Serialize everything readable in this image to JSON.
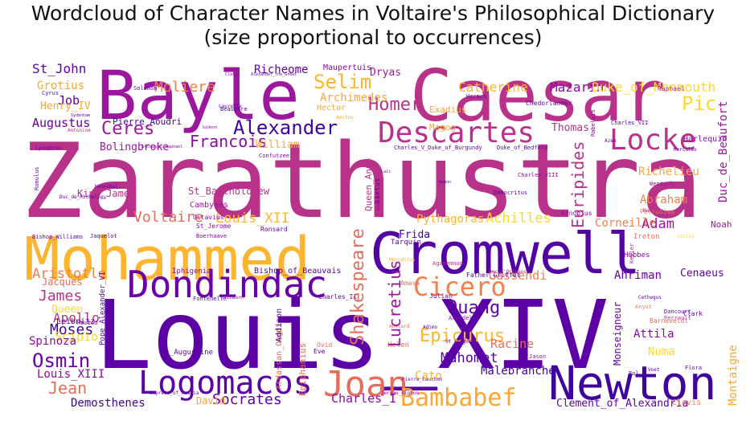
{
  "chart_data": {
    "type": "wordcloud",
    "title": "Wordcloud of Character Names in Voltaire's Philosophical Dictionary",
    "subtitle": "(size proportional to occurrences)",
    "colormap": "plasma",
    "words": [
      {
        "text": "Zarathustra",
        "weight": 100,
        "color": "#b83289"
      },
      {
        "text": "Louis_XIV",
        "weight": 98,
        "color": "#5c01a6"
      },
      {
        "text": "Caesar",
        "weight": 66,
        "color": "#b83289"
      },
      {
        "text": "Bayle",
        "weight": 62,
        "color": "#9c179e"
      },
      {
        "text": "Mohammed",
        "weight": 60,
        "color": "#fdb42f"
      },
      {
        "text": "Cromwell",
        "weight": 56,
        "color": "#5302a3"
      },
      {
        "text": "Newton",
        "weight": 44,
        "color": "#3e049c"
      },
      {
        "text": "Dondindac",
        "weight": 42,
        "color": "#6a00a8"
      },
      {
        "text": "Logomacos",
        "weight": 34,
        "color": "#5c01a6"
      },
      {
        "text": "Descartes",
        "weight": 30,
        "color": "#b83289"
      },
      {
        "text": "Joan",
        "weight": 30,
        "color": "#e66c5c"
      },
      {
        "text": "Cicero",
        "weight": 28,
        "color": "#f0804e"
      },
      {
        "text": "Locke",
        "weight": 28,
        "color": "#b83289"
      },
      {
        "text": "Bambabef",
        "weight": 24,
        "color": "#fca636"
      },
      {
        "text": "Alexander",
        "weight": 22,
        "color": "#3e049c"
      },
      {
        "text": "Shakespeare",
        "weight": 20,
        "color": "#e66c5c"
      },
      {
        "text": "Homer",
        "weight": 20,
        "color": "#b83289"
      },
      {
        "text": "Selim",
        "weight": 20,
        "color": "#fdb42f"
      },
      {
        "text": "Pic",
        "weight": 20,
        "color": "#fdd82f"
      },
      {
        "text": "Osmin",
        "weight": 20,
        "color": "#6a00a8"
      },
      {
        "text": "Ouang",
        "weight": 20,
        "color": "#5c01a6"
      },
      {
        "text": "Epicurus",
        "weight": 19,
        "color": "#fdb42f"
      },
      {
        "text": "Ceres",
        "weight": 18,
        "color": "#9c179e"
      },
      {
        "text": "Francois",
        "weight": 18,
        "color": "#8b0aa5"
      },
      {
        "text": "Voltaire",
        "weight": 17,
        "color": "#e66c5c"
      },
      {
        "text": "Lucretius",
        "weight": 16,
        "color": "#9c179e"
      },
      {
        "text": "Jean",
        "weight": 16,
        "color": "#e66c5c"
      },
      {
        "text": "Moliere",
        "weight": 16,
        "color": "#f0804e"
      },
      {
        "text": "Socrates",
        "weight": 16,
        "color": "#5c01a6"
      },
      {
        "text": "Mahomet",
        "weight": 16,
        "color": "#5302a3"
      },
      {
        "text": "Euripides",
        "weight": 15,
        "color": "#b83289"
      },
      {
        "text": "Adam",
        "weight": 15,
        "color": "#9c179e"
      },
      {
        "text": "Moses",
        "weight": 15,
        "color": "#3e049c"
      },
      {
        "text": "James",
        "weight": 15,
        "color": "#b83289"
      },
      {
        "text": "Louis_XII",
        "weight": 15,
        "color": "#fdb42f"
      },
      {
        "text": "Aristotle",
        "weight": 14,
        "color": "#f0804e"
      },
      {
        "text": "Achilles",
        "weight": 14,
        "color": "#fdd82f"
      },
      {
        "text": "Mazarin",
        "weight": 14,
        "color": "#8b0aa5"
      },
      {
        "text": "Catherine",
        "weight": 14,
        "color": "#fdb42f"
      },
      {
        "text": "Duke_of_Monmouth",
        "weight": 14,
        "color": "#fdd82f"
      },
      {
        "text": "Apollo",
        "weight": 13,
        "color": "#b83289"
      },
      {
        "text": "St_John",
        "weight": 13,
        "color": "#6a00a8"
      },
      {
        "text": "Richeome",
        "weight": 13,
        "color": "#6a00a8"
      },
      {
        "text": "Pythagoras",
        "weight": 13,
        "color": "#fdb42f"
      },
      {
        "text": "Racine",
        "weight": 13,
        "color": "#e66c5c"
      },
      {
        "text": "Ahriman",
        "weight": 13,
        "color": "#6a00a8"
      },
      {
        "text": "Gassendi",
        "weight": 13,
        "color": "#f0804e"
      },
      {
        "text": "Scipio",
        "weight": 13,
        "color": "#fdd82f"
      },
      {
        "text": "Charles_I",
        "weight": 12,
        "color": "#8b0aa5"
      },
      {
        "text": "Cato",
        "weight": 12,
        "color": "#fdb42f"
      },
      {
        "text": "Augustus",
        "weight": 12,
        "color": "#6a00a8"
      },
      {
        "text": "Demosthenes",
        "weight": 12,
        "color": "#3e049c"
      },
      {
        "text": "Louis_XIII",
        "weight": 12,
        "color": "#8b0aa5"
      },
      {
        "text": "Spinoza",
        "weight": 12,
        "color": "#8b0aa5"
      },
      {
        "text": "Archimedes",
        "weight": 12,
        "color": "#fca636"
      },
      {
        "text": "Job",
        "weight": 12,
        "color": "#5c01a6"
      },
      {
        "text": "Grotius",
        "weight": 11,
        "color": "#fca636"
      },
      {
        "text": "Malebranche",
        "weight": 11,
        "color": "#3e049c"
      },
      {
        "text": "Clement_of_Alexandria",
        "weight": 10,
        "color": "#5c01a6"
      },
      {
        "text": "Corneille",
        "weight": 11,
        "color": "#f0804e"
      },
      {
        "text": "Richelieu",
        "weight": 11,
        "color": "#fca636"
      },
      {
        "text": "Abraham",
        "weight": 11,
        "color": "#f0804e"
      },
      {
        "text": "Attila",
        "weight": 11,
        "color": "#8b0aa5"
      },
      {
        "text": "Numa",
        "weight": 11,
        "color": "#fdd82f"
      },
      {
        "text": "Cenaeus",
        "weight": 10,
        "color": "#5c01a6"
      },
      {
        "text": "Henry_IV",
        "weight": 11,
        "color": "#fca636"
      },
      {
        "text": "Bolingbroke",
        "weight": 10,
        "color": "#9c179e"
      },
      {
        "text": "Queen",
        "weight": 11,
        "color": "#fdd82f"
      },
      {
        "text": "William",
        "weight": 10,
        "color": "#fca636"
      },
      {
        "text": "Dryas",
        "weight": 10,
        "color": "#9c179e"
      },
      {
        "text": "Frida",
        "weight": 10,
        "color": "#3e049c"
      },
      {
        "text": "Montaigne",
        "weight": 10,
        "color": "#fca636"
      },
      {
        "text": "Thomas",
        "weight": 10,
        "color": "#b83289"
      },
      {
        "text": "Duc_de_Beaufort",
        "weight": 10,
        "color": "#9c179e"
      },
      {
        "text": "Monseigneur",
        "weight": 9,
        "color": "#6a00a8"
      },
      {
        "text": "Harlequin",
        "weight": 8,
        "color": "#8b0aa5"
      },
      {
        "text": "King_James",
        "weight": 9,
        "color": "#b83289"
      },
      {
        "text": "St_Bartholomew",
        "weight": 9,
        "color": "#b83289"
      },
      {
        "text": "Pierre_Aoudri",
        "weight": 9,
        "color": "#3e049c"
      },
      {
        "text": "Jacques",
        "weight": 9,
        "color": "#e66c5c"
      },
      {
        "text": "Hector",
        "weight": 8,
        "color": "#fca636"
      },
      {
        "text": "Exadius",
        "weight": 8,
        "color": "#fca636"
      },
      {
        "text": "Magog",
        "weight": 8,
        "color": "#fca636"
      },
      {
        "text": "Maupertuis",
        "weight": 8,
        "color": "#8b0aa5"
      },
      {
        "text": "Cambyses",
        "weight": 8,
        "color": "#9c179e"
      },
      {
        "text": "Leibnitz",
        "weight": 8,
        "color": "#5c01a6"
      },
      {
        "text": "Noah",
        "weight": 8,
        "color": "#9c179e"
      },
      {
        "text": "Bishop_of_Beauvais",
        "weight": 7,
        "color": "#5c01a6"
      },
      {
        "text": "Iphigenia",
        "weight": 7,
        "color": "#8b0aa5"
      },
      {
        "text": "Hobbes",
        "weight": 7,
        "color": "#8b0aa5"
      },
      {
        "text": "Ireton",
        "weight": 7,
        "color": "#e66c5c"
      },
      {
        "text": "Tarquin",
        "weight": 7,
        "color": "#5c01a6"
      },
      {
        "text": "Arnobius",
        "weight": 7,
        "color": "#8b0aa5"
      },
      {
        "text": "Raphael",
        "weight": 7,
        "color": "#b83289"
      },
      {
        "text": "Addison",
        "weight": 7,
        "color": "#5c01a6"
      },
      {
        "text": "Epiphanius",
        "weight": 7,
        "color": "#e66c5c"
      },
      {
        "text": "Ardassan_Ougli",
        "weight": 7,
        "color": "#e66c5c"
      },
      {
        "text": "Pope_Alexander_VI",
        "weight": 7,
        "color": "#5c01a6"
      },
      {
        "text": "Queen_Anne",
        "weight": 7,
        "color": "#b83289"
      },
      {
        "text": "Sixtus",
        "weight": 7,
        "color": "#5c01a6"
      },
      {
        "text": "Octavius",
        "weight": 6,
        "color": "#8b0aa5"
      },
      {
        "text": "St_Jerome",
        "weight": 6,
        "color": "#8b0aa5"
      },
      {
        "text": "Ronsard",
        "weight": 6,
        "color": "#5c01a6"
      },
      {
        "text": "Boerhaave",
        "weight": 6,
        "color": "#8b0aa5"
      },
      {
        "text": "St_Augustine",
        "weight": 6,
        "color": "#5c01a6"
      },
      {
        "text": "Solomon",
        "weight": 6,
        "color": "#5c01a6"
      },
      {
        "text": "Confutzee",
        "weight": 6,
        "color": "#8b0aa5"
      },
      {
        "text": "Father_Griffet",
        "weight": 6,
        "color": "#5c01a6"
      },
      {
        "text": "Charles_VII",
        "weight": 6,
        "color": "#5c01a6"
      },
      {
        "text": "Rabelais",
        "weight": 6,
        "color": "#8b0aa5"
      },
      {
        "text": "Petronius",
        "weight": 6,
        "color": "#f0804e"
      },
      {
        "text": "Wentzel",
        "weight": 6,
        "color": "#9c179e"
      },
      {
        "text": "Maximus",
        "weight": 6,
        "color": "#b83289"
      },
      {
        "text": "Chedorlaomer",
        "weight": 6,
        "color": "#5c01a6"
      },
      {
        "text": "Hermes",
        "weight": 6,
        "color": "#5c01a6"
      },
      {
        "text": "Jaquelot",
        "weight": 6,
        "color": "#5c01a6"
      },
      {
        "text": "Bishop_Williams",
        "weight": 6,
        "color": "#5c01a6"
      },
      {
        "text": "Fontenelle",
        "weight": 6,
        "color": "#5c01a6"
      },
      {
        "text": "Charles_II",
        "weight": 6,
        "color": "#5c01a6"
      },
      {
        "text": "Amasa",
        "weight": 6,
        "color": "#e66c5c"
      },
      {
        "text": "Julian",
        "weight": 6,
        "color": "#8b0aa5"
      },
      {
        "text": "Helen",
        "weight": 6,
        "color": "#e66c5c"
      },
      {
        "text": "Hesiod",
        "weight": 6,
        "color": "#8b0aa5"
      },
      {
        "text": "Ovid",
        "weight": 6,
        "color": "#e66c5c"
      },
      {
        "text": "Eve",
        "weight": 6,
        "color": "#5c01a6"
      },
      {
        "text": "Barneveldt",
        "weight": 6,
        "color": "#e66c5c"
      },
      {
        "text": "Clark",
        "weight": 6,
        "color": "#5c01a6"
      },
      {
        "text": "Dancourt",
        "weight": 6,
        "color": "#5c01a6"
      },
      {
        "text": "Perrault",
        "weight": 6,
        "color": "#b83289"
      },
      {
        "text": "Flora",
        "weight": 6,
        "color": "#5c01a6"
      },
      {
        "text": "Rol",
        "weight": 6,
        "color": "#5c01a6"
      },
      {
        "text": "Jason",
        "weight": 6,
        "color": "#8b0aa5"
      },
      {
        "text": "Clovis",
        "weight": 7,
        "color": "#f0804e"
      },
      {
        "text": "David",
        "weight": 7,
        "color": "#fca636"
      },
      {
        "text": "Anyot",
        "weight": 6,
        "color": "#f0804e"
      },
      {
        "text": "Cethegus",
        "weight": 5,
        "color": "#5c01a6"
      },
      {
        "text": "Arundel",
        "weight": 5,
        "color": "#8b0aa5"
      },
      {
        "text": "Agamemnon",
        "weight": 5,
        "color": "#b83289"
      },
      {
        "text": "Cyrus",
        "weight": 5,
        "color": "#5c01a6"
      },
      {
        "text": "Beaupere",
        "weight": 5,
        "color": "#5c01a6"
      },
      {
        "text": "Laurette",
        "weight": 5,
        "color": "#5c01a6"
      },
      {
        "text": "Antonine",
        "weight": 5,
        "color": "#b83289"
      },
      {
        "text": "Lycophron",
        "weight": 5,
        "color": "#5c01a6"
      },
      {
        "text": "Charles_V_Duke_of_Burgundy",
        "weight": 5,
        "color": "#5c01a6"
      },
      {
        "text": "Duke_of_Bedford",
        "weight": 5,
        "color": "#5c01a6"
      },
      {
        "text": "Charles_VIII",
        "weight": 5,
        "color": "#8b0aa5"
      },
      {
        "text": "Democritus",
        "weight": 5,
        "color": "#5c01a6"
      },
      {
        "text": "Duc_d'Orleans",
        "weight": 5,
        "color": "#b83289"
      },
      {
        "text": "Empress_of_Russia",
        "weight": 5,
        "color": "#5c01a6"
      },
      {
        "text": "Jerome_Bignon",
        "weight": 5,
        "color": "#8b0aa5"
      },
      {
        "text": "Romulus",
        "weight": 5,
        "color": "#5c01a6"
      },
      {
        "text": "Hannibal",
        "weight": 5,
        "color": "#5c01a6"
      },
      {
        "text": "Duc_de_Richelieu",
        "weight": 5,
        "color": "#5c01a6"
      },
      {
        "text": "Archangel_Raphael",
        "weight": 4,
        "color": "#8b0aa5"
      },
      {
        "text": "Alexander_the_Great",
        "weight": 4,
        "color": "#5c01a6"
      },
      {
        "text": "Clarke",
        "weight": 4,
        "color": "#8b0aa5"
      },
      {
        "text": "Sydenham",
        "weight": 4,
        "color": "#5c01a6"
      },
      {
        "text": "Gideon",
        "weight": 4,
        "color": "#8b0aa5"
      },
      {
        "text": "Anitus",
        "weight": 4,
        "color": "#fca636"
      },
      {
        "text": "Azem",
        "weight": 4,
        "color": "#5c01a6"
      },
      {
        "text": "Hercules",
        "weight": 4,
        "color": "#5c01a6"
      },
      {
        "text": "Bouchot",
        "weight": 4,
        "color": "#8b0aa5"
      },
      {
        "text": "Lais",
        "weight": 4,
        "color": "#8b0aa5"
      },
      {
        "text": "Ammon",
        "weight": 4,
        "color": "#5c01a6"
      },
      {
        "text": "Abelard",
        "weight": 4,
        "color": "#e66c5c"
      },
      {
        "text": "Adimo",
        "weight": 4,
        "color": "#5c01a6"
      },
      {
        "text": "St_Gregory",
        "weight": 4,
        "color": "#8b0aa5"
      },
      {
        "text": "Voet",
        "weight": 4,
        "color": "#5c01a6"
      },
      {
        "text": "Sicily",
        "weight": 4,
        "color": "#fdd82f"
      },
      {
        "text": "Kepler",
        "weight": 4,
        "color": "#b83289"
      },
      {
        "text": "Pierre_Cauchon",
        "weight": 4,
        "color": "#5c01a6"
      },
      {
        "text": "Elizabeth",
        "weight": 4,
        "color": "#8b0aa5"
      },
      {
        "text": "Herodotus",
        "weight": 4,
        "color": "#fdb42f"
      }
    ]
  }
}
